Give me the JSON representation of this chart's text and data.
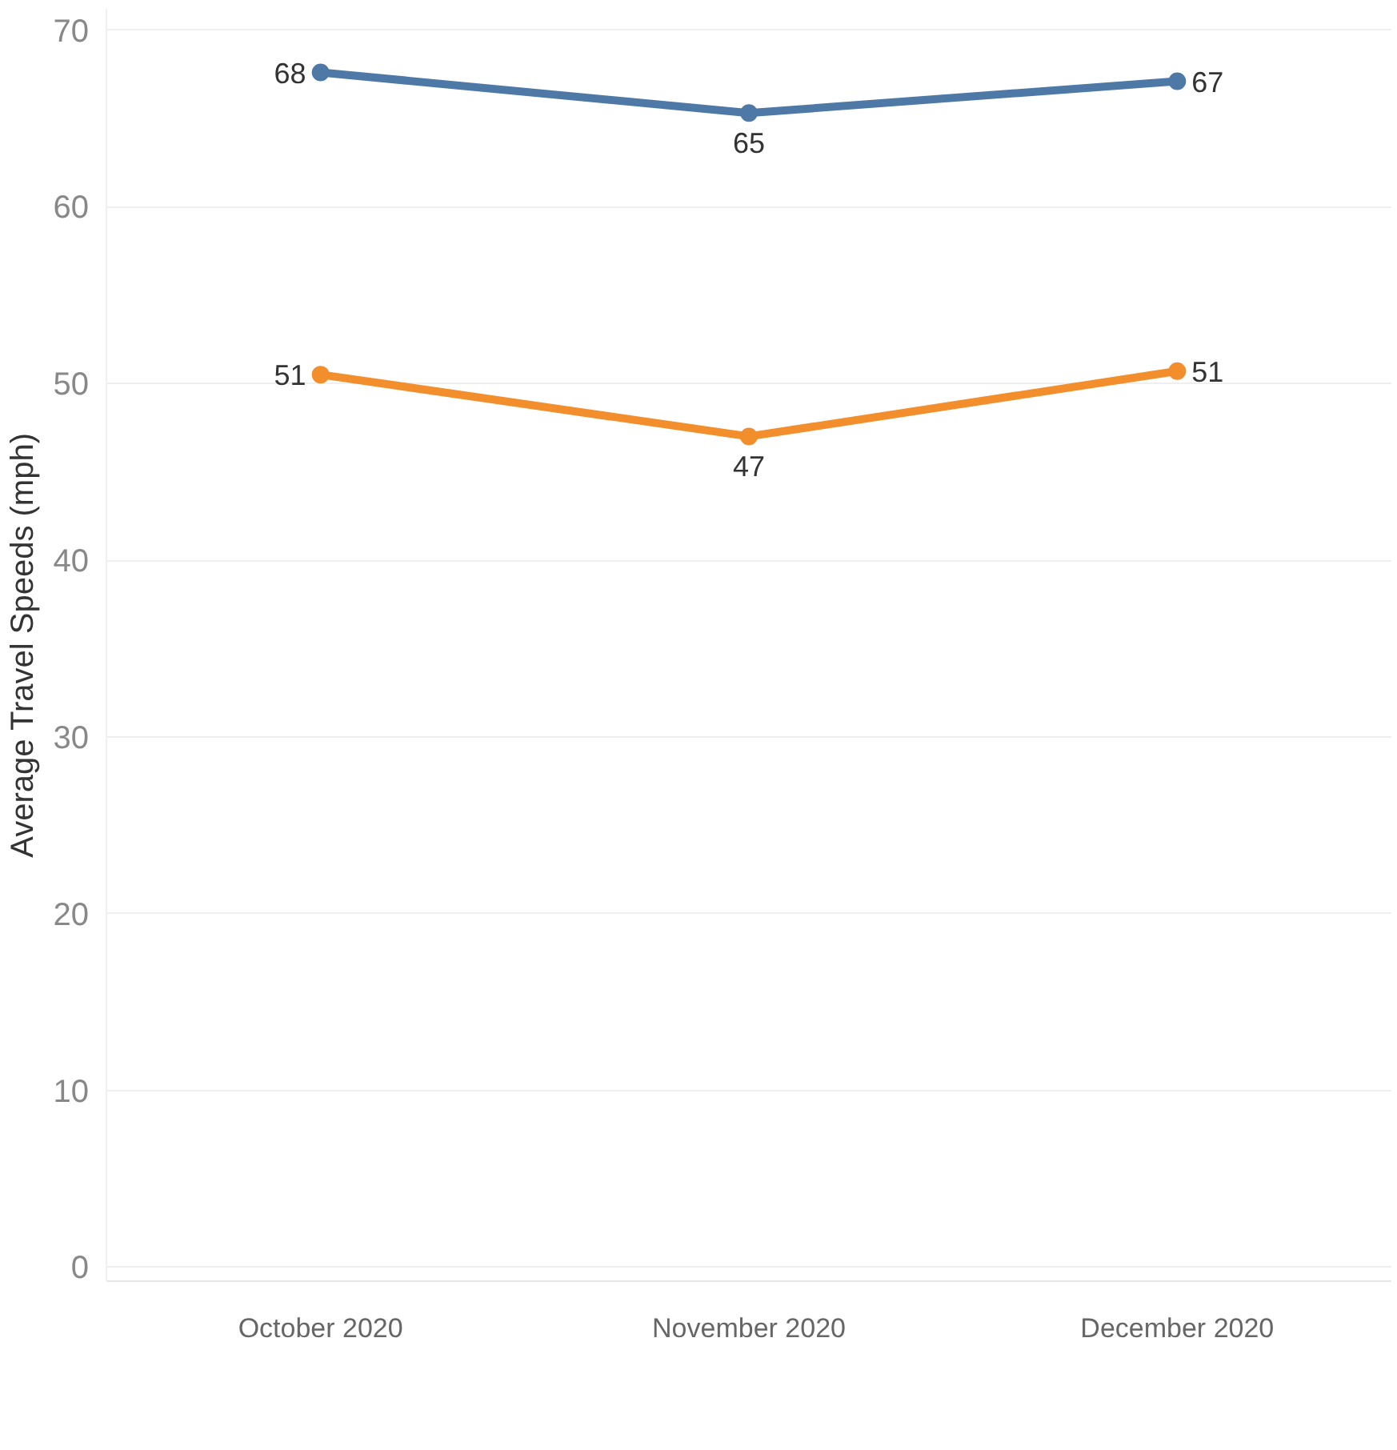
{
  "chart_data": {
    "type": "line",
    "ylabel": "Average Travel Speeds (mph)",
    "categories": [
      "October 2020",
      "November 2020",
      "December 2020"
    ],
    "series": [
      {
        "color": "#4e79a7",
        "values": [
          67.6,
          65.3,
          67.1
        ],
        "value_labels": [
          "68",
          "65",
          "67"
        ]
      },
      {
        "color": "#f28e2b",
        "values": [
          50.5,
          47.0,
          50.7
        ],
        "value_labels": [
          "51",
          "47",
          "51"
        ]
      }
    ],
    "ylim": [
      -0.8,
      71.2
    ],
    "yticks": [
      0,
      10,
      20,
      30,
      40,
      50,
      60,
      70
    ],
    "grid": "y",
    "marker": "circle"
  }
}
